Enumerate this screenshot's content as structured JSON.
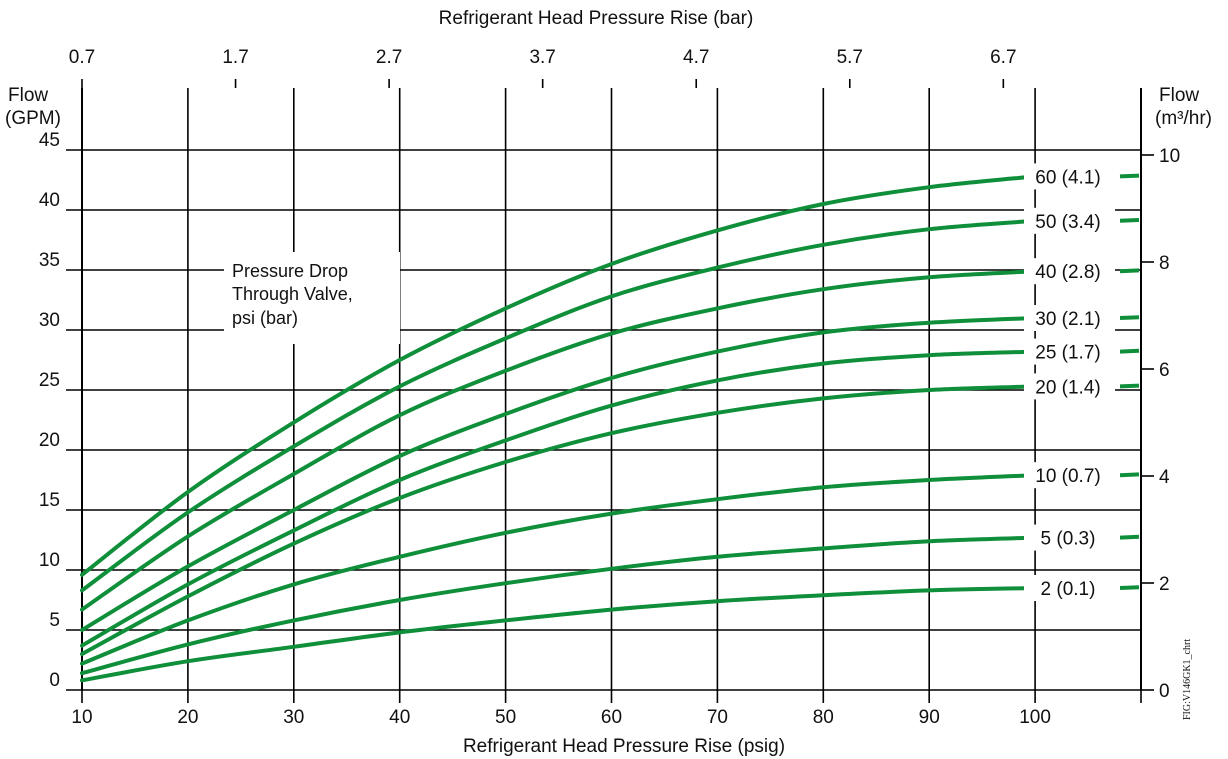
{
  "chart_data": {
    "type": "line",
    "title": "",
    "x_top_label": "Refrigerant Head Pressure Rise (bar)",
    "x_top_ticks": [
      "0.7",
      "1.7",
      "2.7",
      "3.7",
      "4.7",
      "5.7",
      "6.7"
    ],
    "xlabel": "Refrigerant Head Pressure Rise (psig)",
    "x_ticks": [
      "10",
      "20",
      "30",
      "40",
      "50",
      "60",
      "70",
      "80",
      "90",
      "100"
    ],
    "xlim": [
      10,
      110
    ],
    "ylabel_line1": "Flow",
    "ylabel_line2": "(GPM)",
    "y_ticks": [
      "0",
      "5",
      "10",
      "15",
      "20",
      "25",
      "30",
      "35",
      "40",
      "45"
    ],
    "ylim": [
      0,
      45
    ],
    "y_right_label_line1": "Flow",
    "y_right_label_line2": "(m³/hr)",
    "y_right_ticks": [
      "0",
      "2",
      "4",
      "6",
      "8",
      "10"
    ],
    "y_right_lim": [
      0,
      10
    ],
    "grid": true,
    "annotation": [
      "Pressure Drop",
      "Through Valve,",
      "psi (bar)"
    ],
    "figure_id": "FIG:V146GK1_chrt",
    "line_color": "#0f8f3a",
    "x": [
      10,
      20,
      30,
      40,
      50,
      60,
      70,
      80,
      90,
      100
    ],
    "series": [
      {
        "name": "60 (4.1)",
        "values": [
          9.6,
          16.5,
          22.3,
          27.5,
          31.8,
          35.5,
          38.3,
          40.5,
          41.9,
          42.8
        ]
      },
      {
        "name": "50 (3.4)",
        "values": [
          8.3,
          14.8,
          20.3,
          25.3,
          29.3,
          32.8,
          35.2,
          37.1,
          38.4,
          39.1
        ]
      },
      {
        "name": "40 (2.8)",
        "values": [
          6.7,
          12.8,
          18.0,
          22.9,
          26.6,
          29.7,
          31.8,
          33.4,
          34.4,
          34.9
        ]
      },
      {
        "name": "30 (2.1)",
        "values": [
          5.0,
          10.3,
          15.0,
          19.5,
          23.0,
          26.0,
          28.2,
          29.8,
          30.6,
          31.0
        ]
      },
      {
        "name": "25 (1.7)",
        "values": [
          3.7,
          8.8,
          13.3,
          17.5,
          20.8,
          23.7,
          25.8,
          27.2,
          27.9,
          28.2
        ]
      },
      {
        "name": "20 (1.4)",
        "values": [
          3.0,
          7.8,
          12.2,
          16.0,
          19.0,
          21.4,
          23.1,
          24.3,
          25.0,
          25.3
        ]
      },
      {
        "name": "10 (0.7)",
        "values": [
          2.2,
          5.8,
          8.8,
          11.1,
          13.1,
          14.7,
          15.9,
          16.9,
          17.5,
          17.9
        ]
      },
      {
        "name": "5 (0.3)",
        "values": [
          1.4,
          3.8,
          5.8,
          7.5,
          8.9,
          10.1,
          11.1,
          11.8,
          12.4,
          12.7
        ]
      },
      {
        "name": "2 (0.1)",
        "values": [
          0.8,
          2.4,
          3.6,
          4.8,
          5.8,
          6.7,
          7.4,
          7.9,
          8.3,
          8.5
        ]
      }
    ]
  }
}
